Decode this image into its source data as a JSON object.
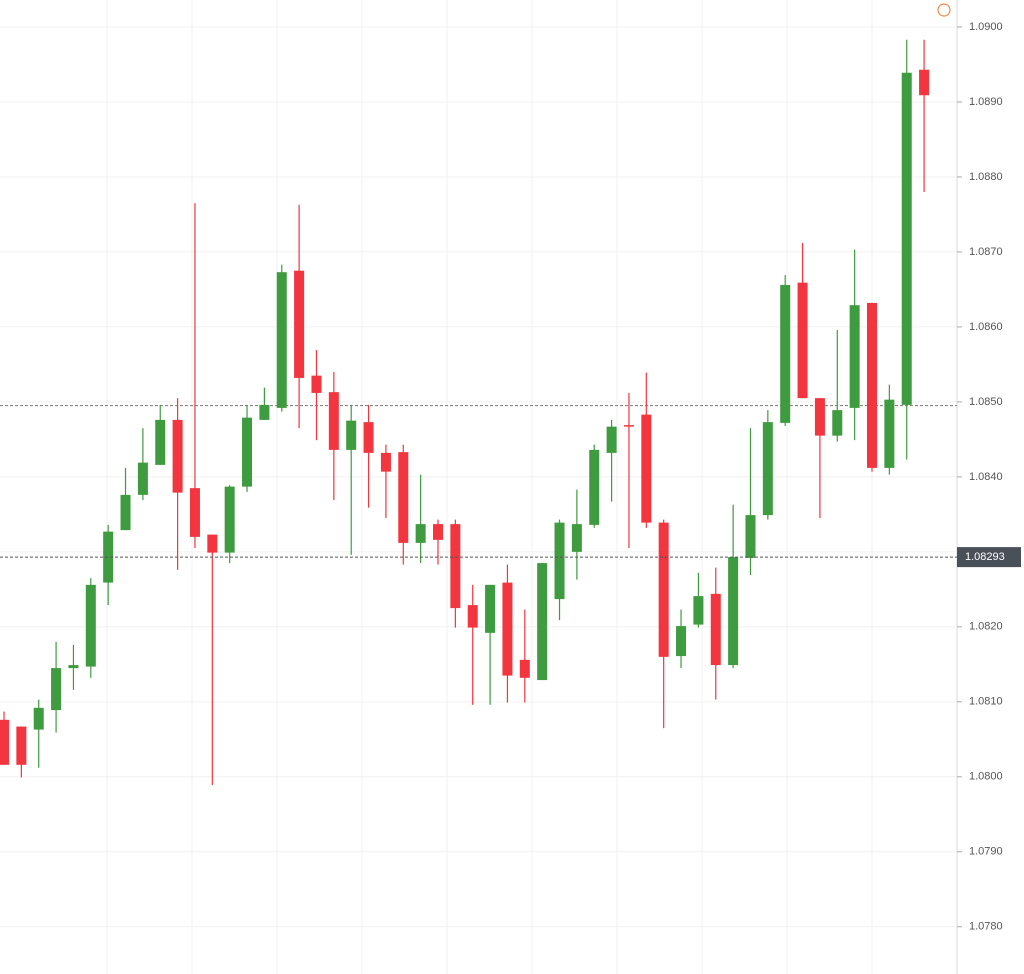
{
  "chart_data": {
    "type": "candlestick",
    "up_color": "#3f9b3f",
    "down_color": "#f2353f",
    "ylim": [
      1.07737,
      1.09036
    ],
    "yticks": [
      {
        "value": 1.078,
        "label": "1.0780"
      },
      {
        "value": 1.079,
        "label": "1.0790"
      },
      {
        "value": 1.08,
        "label": "1.0800"
      },
      {
        "value": 1.081,
        "label": "1.0810"
      },
      {
        "value": 1.082,
        "label": "1.0820"
      },
      {
        "value": 1.083,
        "label": "1.0830"
      },
      {
        "value": 1.084,
        "label": "1.0840"
      },
      {
        "value": 1.085,
        "label": "1.0850"
      },
      {
        "value": 1.086,
        "label": "1.0860"
      },
      {
        "value": 1.087,
        "label": "1.0870"
      },
      {
        "value": 1.088,
        "label": "1.0880"
      },
      {
        "value": 1.089,
        "label": "1.0890"
      },
      {
        "value": 1.09,
        "label": "1.0900"
      }
    ],
    "grid": true,
    "price_lines": [
      1.08495
    ],
    "price_label": 1.08293,
    "open": [
      1.08076,
      1.08067,
      1.08063,
      1.08089,
      1.08145,
      1.08147,
      1.08259,
      1.08329,
      1.08376,
      1.08416,
      1.08476,
      1.08385,
      1.08323,
      1.08299,
      1.08387,
      1.08476,
      1.08492,
      1.08675,
      1.08535,
      1.08513,
      1.08436,
      1.08473,
      1.08432,
      1.08433,
      1.08312,
      1.08337,
      1.08337,
      1.08229,
      1.08192,
      1.08259,
      1.08156,
      1.08129,
      1.08237,
      1.083,
      1.08336,
      1.08432,
      1.08469,
      1.08483,
      1.08339,
      1.08161,
      1.08203,
      1.08244,
      1.08149,
      1.08292,
      1.08349,
      1.08472,
      1.08659,
      1.08505,
      1.08455,
      1.08492,
      1.08632,
      1.08412,
      1.08496,
      1.08943
    ],
    "high": [
      1.08087,
      1.08067,
      1.08103,
      1.0818,
      1.08176,
      1.08265,
      1.08336,
      1.08412,
      1.08465,
      1.08496,
      1.08505,
      1.08765,
      1.08323,
      1.08389,
      1.08496,
      1.08519,
      1.08683,
      1.08763,
      1.08569,
      1.0854,
      1.08496,
      1.08496,
      1.08443,
      1.08443,
      1.08403,
      1.08343,
      1.08343,
      1.08256,
      1.08256,
      1.08283,
      1.08223,
      1.08285,
      1.08343,
      1.08383,
      1.08443,
      1.08476,
      1.08512,
      1.08539,
      1.08343,
      1.08223,
      1.08272,
      1.08279,
      1.08363,
      1.08465,
      1.08489,
      1.08669,
      1.08712,
      1.08505,
      1.08596,
      1.08703,
      1.08632,
      1.08523,
      1.08983,
      1.08983
    ],
    "low": [
      1.08016,
      1.07999,
      1.08012,
      1.08059,
      1.08116,
      1.08132,
      1.08229,
      1.08329,
      1.08369,
      1.08416,
      1.08276,
      1.08305,
      1.07989,
      1.08285,
      1.0838,
      1.08476,
      1.08487,
      1.08465,
      1.08449,
      1.08369,
      1.08296,
      1.08359,
      1.08345,
      1.08283,
      1.08285,
      1.08283,
      1.08199,
      1.08096,
      1.08096,
      1.08099,
      1.08099,
      1.08129,
      1.08209,
      1.08263,
      1.08332,
      1.08367,
      1.08305,
      1.08332,
      1.08065,
      1.08145,
      1.08199,
      1.08103,
      1.08145,
      1.08269,
      1.08343,
      1.08468,
      1.08505,
      1.08345,
      1.08447,
      1.08449,
      1.08407,
      1.08403,
      1.08423,
      1.0878
    ],
    "close": [
      1.08016,
      1.08016,
      1.08092,
      1.08145,
      1.08149,
      1.08256,
      1.08327,
      1.08376,
      1.08419,
      1.08476,
      1.08379,
      1.0832,
      1.08299,
      1.08387,
      1.08479,
      1.08496,
      1.08673,
      1.08532,
      1.08512,
      1.08436,
      1.08475,
      1.08432,
      1.08407,
      1.08312,
      1.08337,
      1.08316,
      1.08225,
      1.08199,
      1.08256,
      1.08135,
      1.08132,
      1.08285,
      1.08339,
      1.08337,
      1.08436,
      1.08467,
      1.08467,
      1.08339,
      1.0816,
      1.08201,
      1.08241,
      1.08149,
      1.08293,
      1.08349,
      1.08473,
      1.08656,
      1.08505,
      1.08455,
      1.08489,
      1.08629,
      1.08412,
      1.08503,
      1.08939,
      1.08909
    ]
  }
}
